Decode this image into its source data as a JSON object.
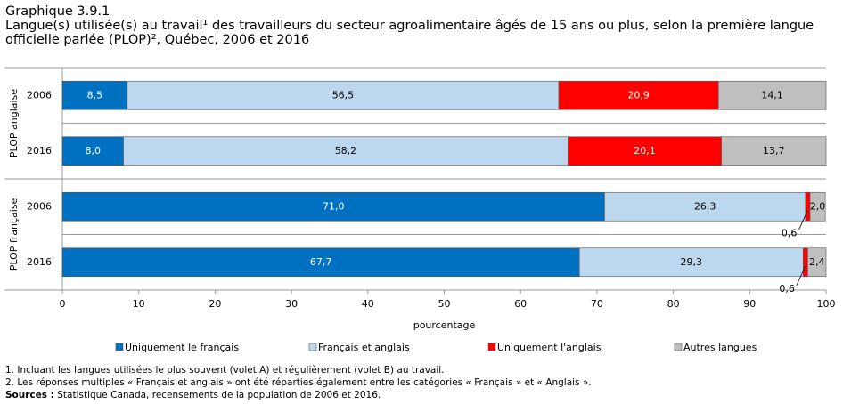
{
  "chart_data": {
    "type": "stacked-bar-horizontal",
    "title": "Graphique 3.9.1",
    "subtitle": "Langue(s) utilisée(s) au travail¹ des travailleurs du secteur agroalimentaire âgés de 15 ans ou plus, selon la première langue officielle parlée (PLOP)², Québec, 2006 et 2016",
    "groups": [
      "PLOP anglaise",
      "PLOP française"
    ],
    "categories": [
      "2006",
      "2016",
      "2006",
      "2016"
    ],
    "series": [
      {
        "name": "Uniquement le français",
        "color": "#0070c0",
        "values": [
          8.5,
          8.0,
          71.0,
          67.7
        ],
        "value_labels": [
          "8,5",
          "8,0",
          "71,0",
          "67,7"
        ]
      },
      {
        "name": "Français et anglais",
        "color": "#bdd7ee",
        "values": [
          56.5,
          58.2,
          26.3,
          29.3
        ],
        "value_labels": [
          "56,5",
          "58,2",
          "26,3",
          "29,3"
        ]
      },
      {
        "name": "Uniquement l'anglais",
        "color": "#ff0000",
        "values": [
          20.9,
          20.1,
          0.6,
          0.6
        ],
        "value_labels": [
          "20,9",
          "20,1",
          "0,6",
          "0,6"
        ]
      },
      {
        "name": "Autres langues",
        "color": "#bfbfbf",
        "values": [
          14.1,
          13.7,
          2.0,
          2.4
        ],
        "value_labels": [
          "14,1",
          "13,7",
          "2,0",
          "2,4"
        ]
      }
    ],
    "xlabel": "pourcentage",
    "xlim": [
      0,
      100
    ],
    "xticks": [
      0,
      10,
      20,
      30,
      40,
      50,
      60,
      70,
      80,
      90,
      100
    ],
    "notes": [
      "1. Incluant les langues utilisées le plus souvent (volet A) et régulièrement (volet B) au travail.",
      "2. Les réponses multiples « Français et anglais » ont été réparties également entre les catégories « Français » et « Anglais »."
    ],
    "sources_label": "Sources :",
    "sources": "Statistique Canada, recensements de la population de 2006 et 2016."
  }
}
